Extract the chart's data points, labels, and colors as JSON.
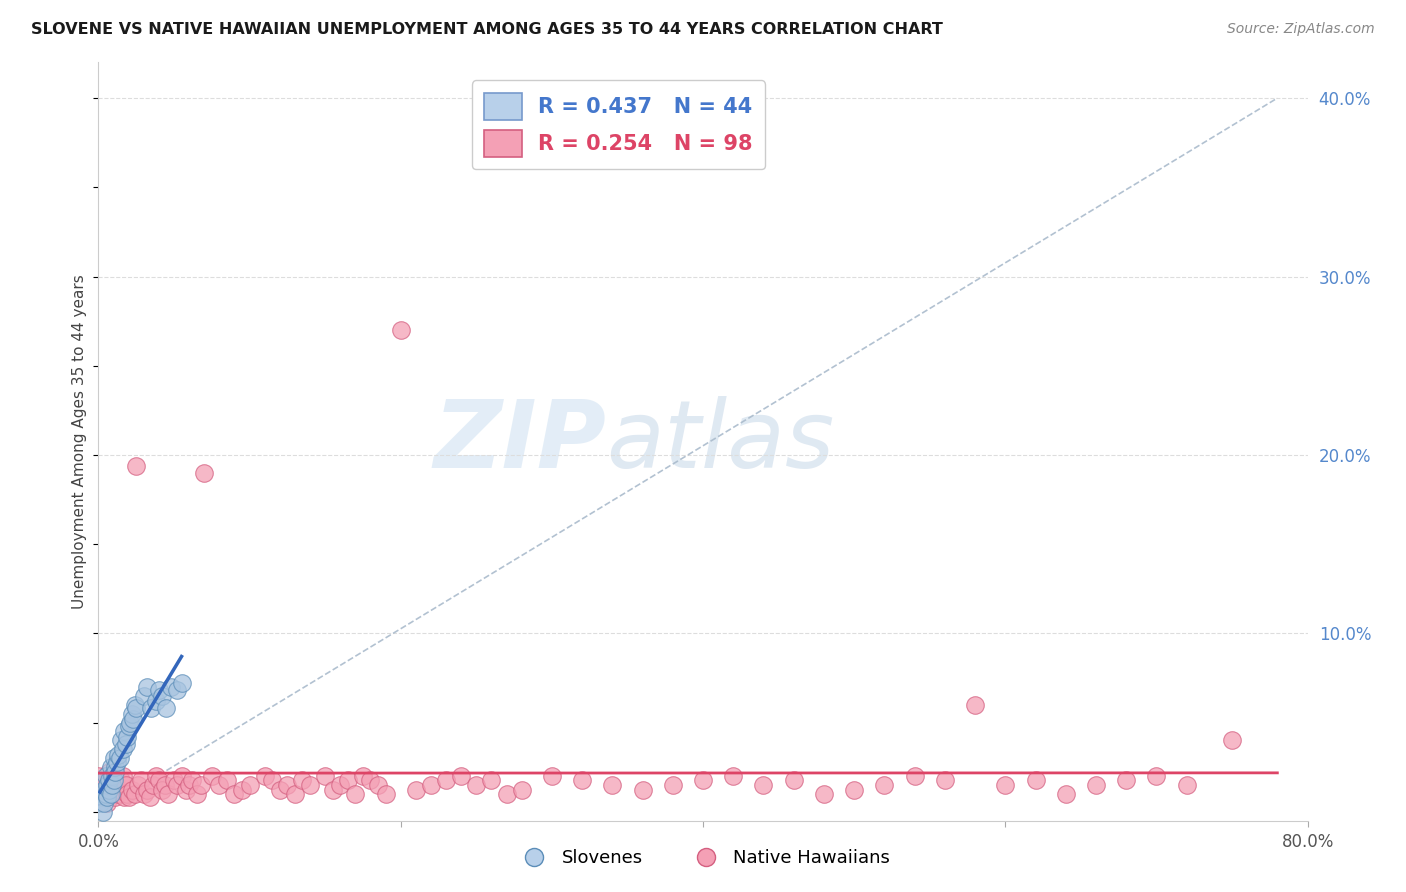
{
  "title": "SLOVENE VS NATIVE HAWAIIAN UNEMPLOYMENT AMONG AGES 35 TO 44 YEARS CORRELATION CHART",
  "source": "Source: ZipAtlas.com",
  "ylabel": "Unemployment Among Ages 35 to 44 years",
  "xlim": [
    0.0,
    0.8
  ],
  "ylim": [
    -0.005,
    0.42
  ],
  "watermark_zip": "ZIP",
  "watermark_atlas": "atlas",
  "slovene_color": "#a8c4e0",
  "slovene_edge_color": "#5b8db8",
  "native_color": "#f4a0b5",
  "native_edge_color": "#d45f80",
  "slovene_R": 0.437,
  "slovene_N": 44,
  "native_R": 0.254,
  "native_N": 98,
  "trend_blue_color": "#3366bb",
  "trend_pink_color": "#dd4466",
  "ref_line_color": "#aabbcc",
  "slovene_x": [
    0.001,
    0.002,
    0.003,
    0.003,
    0.004,
    0.004,
    0.005,
    0.005,
    0.006,
    0.006,
    0.007,
    0.007,
    0.008,
    0.008,
    0.009,
    0.009,
    0.01,
    0.01,
    0.011,
    0.011,
    0.012,
    0.013,
    0.014,
    0.015,
    0.016,
    0.017,
    0.018,
    0.019,
    0.02,
    0.021,
    0.022,
    0.023,
    0.024,
    0.025,
    0.03,
    0.032,
    0.035,
    0.038,
    0.04,
    0.042,
    0.045,
    0.048,
    0.052,
    0.055
  ],
  "slovene_y": [
    0.005,
    0.01,
    0.008,
    0.0,
    0.005,
    0.012,
    0.01,
    0.02,
    0.008,
    0.015,
    0.012,
    0.018,
    0.01,
    0.025,
    0.02,
    0.015,
    0.03,
    0.018,
    0.025,
    0.022,
    0.028,
    0.032,
    0.03,
    0.04,
    0.035,
    0.045,
    0.038,
    0.042,
    0.048,
    0.05,
    0.055,
    0.052,
    0.06,
    0.058,
    0.065,
    0.07,
    0.058,
    0.062,
    0.068,
    0.065,
    0.058,
    0.07,
    0.068,
    0.072
  ],
  "native_x": [
    0.0,
    0.001,
    0.002,
    0.003,
    0.004,
    0.005,
    0.006,
    0.007,
    0.008,
    0.009,
    0.01,
    0.011,
    0.012,
    0.013,
    0.014,
    0.015,
    0.016,
    0.017,
    0.018,
    0.019,
    0.02,
    0.022,
    0.024,
    0.025,
    0.026,
    0.028,
    0.03,
    0.032,
    0.034,
    0.036,
    0.038,
    0.04,
    0.042,
    0.044,
    0.046,
    0.05,
    0.052,
    0.055,
    0.058,
    0.06,
    0.062,
    0.065,
    0.068,
    0.07,
    0.075,
    0.08,
    0.085,
    0.09,
    0.095,
    0.1,
    0.11,
    0.115,
    0.12,
    0.125,
    0.13,
    0.135,
    0.14,
    0.15,
    0.155,
    0.16,
    0.165,
    0.17,
    0.175,
    0.18,
    0.185,
    0.19,
    0.2,
    0.21,
    0.22,
    0.23,
    0.24,
    0.25,
    0.26,
    0.27,
    0.28,
    0.3,
    0.32,
    0.34,
    0.36,
    0.38,
    0.4,
    0.42,
    0.44,
    0.46,
    0.48,
    0.5,
    0.52,
    0.54,
    0.56,
    0.58,
    0.6,
    0.62,
    0.64,
    0.66,
    0.68,
    0.7,
    0.72,
    0.75
  ],
  "native_y": [
    0.02,
    0.015,
    0.008,
    0.012,
    0.018,
    0.01,
    0.005,
    0.022,
    0.015,
    0.018,
    0.012,
    0.008,
    0.015,
    0.01,
    0.012,
    0.018,
    0.02,
    0.008,
    0.015,
    0.01,
    0.008,
    0.012,
    0.01,
    0.194,
    0.015,
    0.018,
    0.01,
    0.012,
    0.008,
    0.015,
    0.02,
    0.018,
    0.012,
    0.015,
    0.01,
    0.018,
    0.015,
    0.02,
    0.012,
    0.015,
    0.018,
    0.01,
    0.015,
    0.19,
    0.02,
    0.015,
    0.018,
    0.01,
    0.012,
    0.015,
    0.02,
    0.018,
    0.012,
    0.015,
    0.01,
    0.018,
    0.015,
    0.02,
    0.012,
    0.015,
    0.018,
    0.01,
    0.02,
    0.018,
    0.015,
    0.01,
    0.27,
    0.012,
    0.015,
    0.018,
    0.02,
    0.015,
    0.018,
    0.01,
    0.012,
    0.02,
    0.018,
    0.015,
    0.012,
    0.015,
    0.018,
    0.02,
    0.015,
    0.018,
    0.01,
    0.012,
    0.015,
    0.02,
    0.018,
    0.06,
    0.015,
    0.018,
    0.01,
    0.015,
    0.018,
    0.02,
    0.015,
    0.04
  ]
}
